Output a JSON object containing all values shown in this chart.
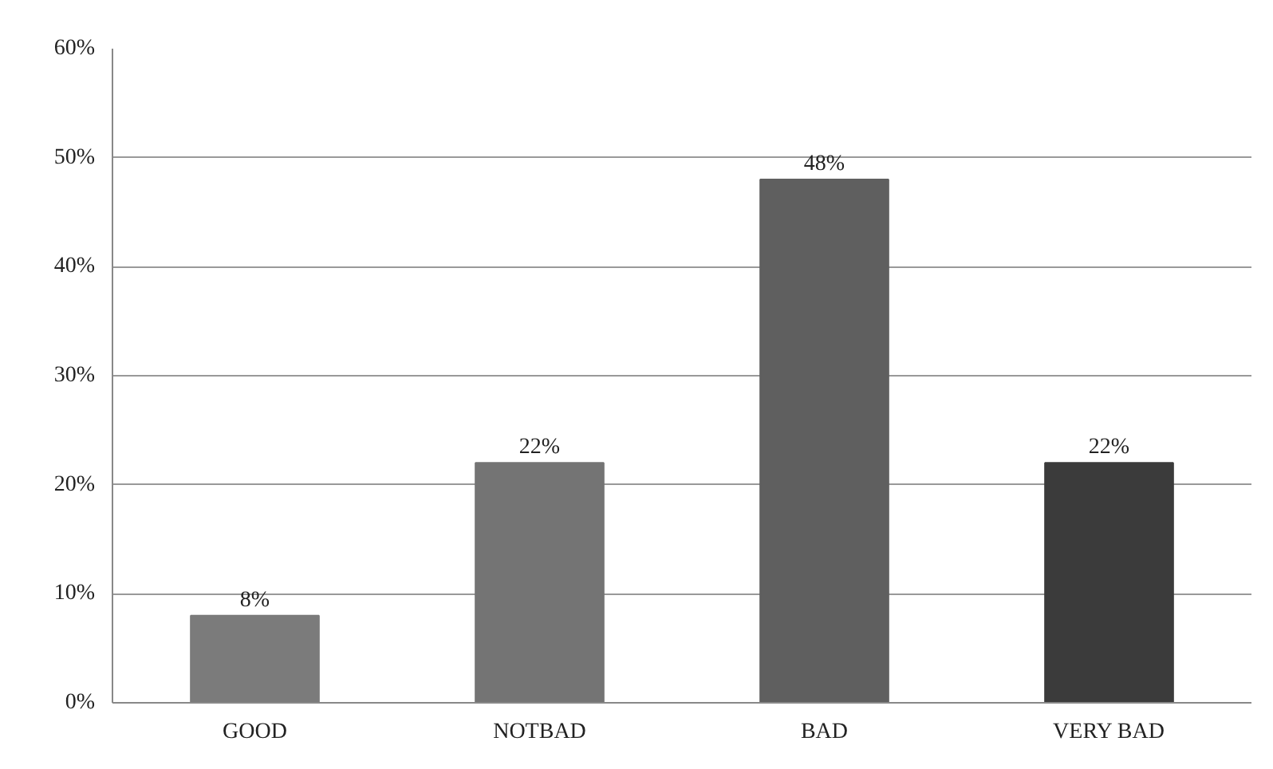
{
  "chart_data": {
    "type": "bar",
    "categories": [
      "GOOD",
      "NOTBAD",
      "BAD",
      "VERY BAD"
    ],
    "values": [
      8,
      22,
      48,
      22
    ],
    "colors": [
      "#7b7b7b",
      "#747474",
      "#5f5f5f",
      "#3b3b3b"
    ],
    "value_labels": [
      "8%",
      "22%",
      "48%",
      "22%"
    ],
    "ylim": [
      0,
      60
    ],
    "yticks": [
      {
        "value": 0,
        "label": "0%"
      },
      {
        "value": 10,
        "label": "10%"
      },
      {
        "value": 20,
        "label": "20%"
      },
      {
        "value": 30,
        "label": "30%"
      },
      {
        "value": 40,
        "label": "40%"
      },
      {
        "value": 50,
        "label": "50%"
      },
      {
        "value": 60,
        "label": "60%"
      }
    ],
    "grid": "y"
  }
}
